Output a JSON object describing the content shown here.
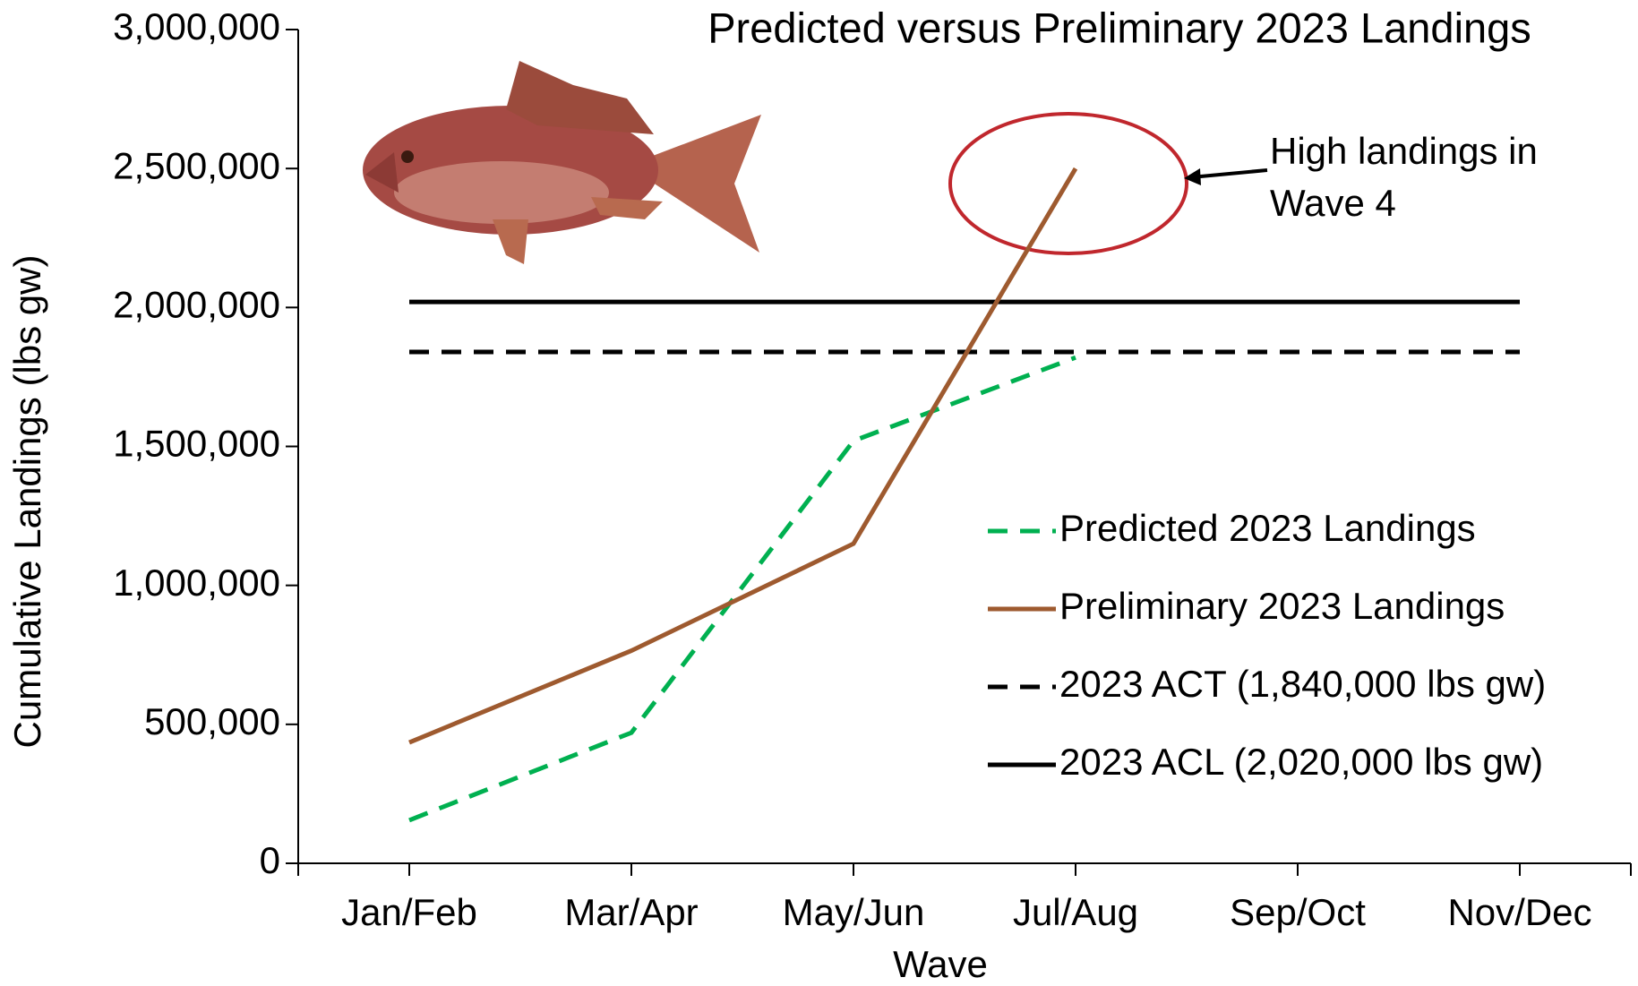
{
  "chart_data": {
    "type": "line",
    "title": "Predicted versus Preliminary 2023 Landings",
    "x_label": "Wave",
    "y_label": "Cumulative Landings (lbs gw)",
    "categories": [
      "Jan/Feb",
      "Mar/Apr",
      "May/Jun",
      "Jul/Aug",
      "Sep/Oct",
      "Nov/Dec"
    ],
    "series": [
      {
        "name": "Predicted 2023 Landings",
        "color": "#00b050",
        "style": "dashed",
        "values": [
          155000,
          470000,
          1520000,
          1820000,
          null,
          null
        ]
      },
      {
        "name": "Preliminary 2023 Landings",
        "color": "#9e5a2f",
        "style": "solid",
        "values": [
          435000,
          765000,
          1150000,
          2500000,
          null,
          null
        ]
      },
      {
        "name": "2023 ACT (1,840,000 lbs gw)",
        "color": "#000000",
        "style": "dashed",
        "values": [
          1840000,
          1840000,
          1840000,
          1840000,
          1840000,
          1840000
        ]
      },
      {
        "name": "2023 ACL (2,020,000 lbs gw)",
        "color": "#000000",
        "style": "solid",
        "values": [
          2020000,
          2020000,
          2020000,
          2020000,
          2020000,
          2020000
        ]
      }
    ],
    "ylim": [
      0,
      3000000
    ],
    "yticks": [
      0,
      {
        "value": 500000,
        "label": "500,000"
      },
      {
        "value": 1000000,
        "label": "1,000,000"
      },
      {
        "value": 1500000,
        "label": "1,500,000"
      },
      {
        "value": 2000000,
        "label": "2,000,000"
      },
      {
        "value": 2500000,
        "label": "2,500,000"
      },
      {
        "value": 3000000,
        "label": "3,000,000"
      }
    ],
    "annotation": [
      "High landings in",
      "Wave 4"
    ],
    "legend": "right"
  }
}
